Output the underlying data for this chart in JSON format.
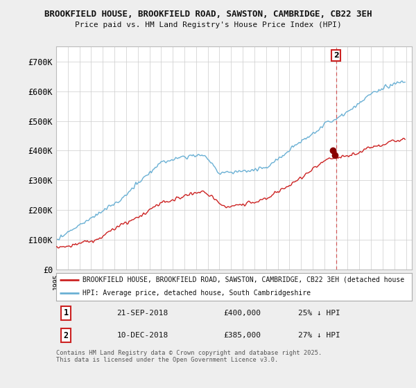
{
  "title_line1": "BROOKFIELD HOUSE, BROOKFIELD ROAD, SAWSTON, CAMBRIDGE, CB22 3EH",
  "title_line2": "Price paid vs. HM Land Registry's House Price Index (HPI)",
  "bg_color": "#eeeeee",
  "plot_bg_color": "#ffffff",
  "hpi_color": "#6ab0d4",
  "price_color": "#cc2222",
  "vline_color": "#cc2222",
  "ylim": [
    0,
    750000
  ],
  "yticks": [
    0,
    100000,
    200000,
    300000,
    400000,
    500000,
    600000,
    700000
  ],
  "ytick_labels": [
    "£0",
    "£100K",
    "£200K",
    "£300K",
    "£400K",
    "£500K",
    "£600K",
    "£700K"
  ],
  "sale1_price": 400000,
  "sale2_price": 385000,
  "sale1_year": 2018.75,
  "sale2_year": 2018.92,
  "legend_entry1": "BROOKFIELD HOUSE, BROOKFIELD ROAD, SAWSTON, CAMBRIDGE, CB22 3EH (detached house",
  "legend_entry2": "HPI: Average price, detached house, South Cambridgeshire",
  "table_row1": [
    "1",
    "21-SEP-2018",
    "£400,000",
    "25% ↓ HPI"
  ],
  "table_row2": [
    "2",
    "10-DEC-2018",
    "£385,000",
    "27% ↓ HPI"
  ],
  "footnote": "Contains HM Land Registry data © Crown copyright and database right 2025.\nThis data is licensed under the Open Government Licence v3.0."
}
